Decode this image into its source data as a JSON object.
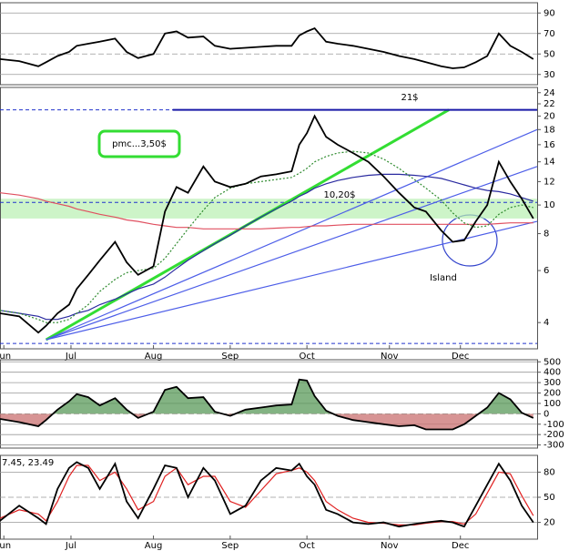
{
  "chart_data": [
    {
      "type": "line",
      "ylim": [
        20,
        100
      ],
      "yticks": [
        30,
        50,
        70,
        90
      ],
      "grid": true,
      "x": [
        0,
        5,
        10,
        12,
        15,
        18,
        20,
        23,
        26,
        30,
        33,
        36,
        40,
        43,
        46,
        49,
        53,
        56,
        60,
        64,
        68,
        72,
        76,
        78,
        80,
        82,
        85,
        88,
        92,
        96,
        100,
        104,
        108,
        111,
        115,
        118,
        121,
        124,
        127,
        130,
        133,
        136,
        139
      ],
      "xlim": [
        0,
        140
      ],
      "series": [
        {
          "color": "#000000",
          "values": [
            45,
            43,
            38,
            42,
            48,
            52,
            58,
            60,
            62,
            65,
            52,
            46,
            50,
            70,
            72,
            66,
            67,
            58,
            55,
            56,
            57,
            58,
            58,
            68,
            72,
            75,
            62,
            60,
            58,
            55,
            52,
            48,
            45,
            42,
            38,
            36,
            37,
            42,
            48,
            70,
            58,
            52,
            45
          ]
        }
      ]
    },
    {
      "type": "line",
      "log_scale": true,
      "ylim": [
        3.26,
        25
      ],
      "yticks": [
        4,
        6,
        8,
        10,
        12,
        14,
        16,
        18,
        20,
        22,
        24
      ],
      "grid": false,
      "x": [
        0,
        5,
        10,
        12,
        15,
        18,
        20,
        23,
        26,
        30,
        33,
        36,
        40,
        43,
        46,
        49,
        53,
        56,
        60,
        64,
        68,
        72,
        76,
        78,
        80,
        82,
        85,
        88,
        92,
        96,
        100,
        104,
        108,
        111,
        115,
        118,
        121,
        124,
        127,
        130,
        133,
        136,
        139
      ],
      "xlim": [
        0,
        140
      ],
      "xticks": [
        {
          "value": 1,
          "label": "Jun"
        },
        {
          "value": 18.5,
          "label": "Jul"
        },
        {
          "value": 40,
          "label": "Aug"
        },
        {
          "value": 60,
          "label": "Sep"
        },
        {
          "value": 80,
          "label": "Oct"
        },
        {
          "value": 101.5,
          "label": "Nov"
        },
        {
          "value": 120,
          "label": "Dec"
        }
      ],
      "band": [
        9,
        10.5
      ],
      "reference_lines": [
        21,
        10.2,
        3.4
      ],
      "trendlines": [
        {
          "color": "#33dd33",
          "x": [
            12,
            117
          ],
          "values": [
            3.5,
            21
          ]
        },
        {
          "color": "#4d5ee8",
          "x": [
            12,
            140
          ],
          "values": [
            3.5,
            18
          ]
        },
        {
          "color": "#4d5ee8",
          "x": [
            12,
            140
          ],
          "values": [
            3.5,
            13.5
          ]
        },
        {
          "color": "#4d5ee8",
          "x": [
            12,
            140
          ],
          "values": [
            3.5,
            8.8
          ]
        },
        {
          "color": "#1a1aa8",
          "x": [
            45,
            140
          ],
          "values": [
            21,
            21
          ]
        }
      ],
      "annotations": [
        "21$",
        "10,20$",
        "pmc...3,50$",
        "Island"
      ],
      "series": [
        {
          "color": "#e05060",
          "values": [
            11,
            10.8,
            10.5,
            10.3,
            10.1,
            9.9,
            9.7,
            9.5,
            9.3,
            9.1,
            8.9,
            8.8,
            8.6,
            8.5,
            8.4,
            8.4,
            8.3,
            8.3,
            8.3,
            8.3,
            8.3,
            8.35,
            8.4,
            8.4,
            8.45,
            8.5,
            8.5,
            8.55,
            8.6,
            8.6,
            8.6,
            8.6,
            8.6,
            8.6,
            8.6,
            8.6,
            8.6,
            8.6,
            8.6,
            8.65,
            8.7,
            8.7,
            8.7
          ]
        },
        {
          "color": "#2a2aa0",
          "values": [
            4.4,
            4.3,
            4.2,
            4.1,
            4.1,
            4.2,
            4.3,
            4.4,
            4.6,
            4.8,
            5,
            5.2,
            5.4,
            5.7,
            6.1,
            6.5,
            7,
            7.4,
            7.9,
            8.5,
            9.1,
            9.7,
            10.3,
            10.7,
            11,
            11.4,
            11.8,
            12.1,
            12.4,
            12.6,
            12.7,
            12.7,
            12.6,
            12.5,
            12.3,
            12,
            11.7,
            11.4,
            11.2,
            11.1,
            10.9,
            10.6,
            10.3
          ]
        },
        {
          "color": "#2e8b2e",
          "values": [
            4.4,
            4.3,
            4.1,
            4.0,
            4.0,
            4.1,
            4.3,
            4.6,
            5.1,
            5.6,
            5.9,
            6.0,
            6.1,
            6.6,
            7.4,
            8.3,
            9.6,
            10.6,
            11.4,
            11.8,
            12.0,
            12.2,
            12.4,
            12.8,
            13.3,
            14,
            14.6,
            15,
            15.2,
            15.0,
            14.3,
            13.3,
            12.2,
            11.4,
            10.4,
            9.4,
            8.7,
            8.4,
            8.5,
            9.3,
            9.8,
            10,
            9.8
          ]
        },
        {
          "color": "#000000",
          "values": [
            4.3,
            4.2,
            3.7,
            3.9,
            4.3,
            4.6,
            5.2,
            5.8,
            6.5,
            7.5,
            6.4,
            5.8,
            6.2,
            9.5,
            11.5,
            11,
            13.5,
            12,
            11.5,
            11.8,
            12.5,
            12.7,
            13,
            16,
            17.5,
            20,
            17,
            16,
            15,
            14,
            12.5,
            11,
            9.8,
            9.5,
            8.2,
            7.5,
            7.6,
            8.8,
            10,
            14,
            12,
            10.5,
            9
          ]
        }
      ]
    },
    {
      "type": "area",
      "ylim": [
        -330,
        520
      ],
      "yticks": [
        -300,
        -200,
        -100,
        0,
        100,
        200,
        300,
        400,
        500
      ],
      "grid": true,
      "x": [
        0,
        5,
        10,
        12,
        15,
        18,
        20,
        23,
        26,
        30,
        33,
        36,
        40,
        43,
        46,
        49,
        53,
        56,
        60,
        64,
        68,
        72,
        76,
        78,
        80,
        82,
        85,
        88,
        92,
        96,
        100,
        104,
        108,
        111,
        115,
        118,
        121,
        124,
        127,
        130,
        133,
        136,
        139
      ],
      "xlim": [
        0,
        140
      ],
      "series": [
        {
          "color": "#000000",
          "values": [
            -50,
            -80,
            -120,
            -60,
            40,
            120,
            190,
            160,
            80,
            150,
            40,
            -40,
            20,
            230,
            260,
            150,
            160,
            20,
            -20,
            40,
            60,
            80,
            90,
            330,
            320,
            170,
            30,
            -20,
            -60,
            -80,
            -100,
            -120,
            -110,
            -150,
            -150,
            -150,
            -100,
            -20,
            60,
            200,
            140,
            10,
            -40
          ]
        }
      ]
    },
    {
      "type": "line",
      "title": "7.45, 23.49",
      "ylim": [
        0,
        100
      ],
      "yticks": [
        20,
        50,
        80
      ],
      "grid": true,
      "x": [
        0,
        5,
        10,
        12,
        15,
        18,
        20,
        23,
        26,
        30,
        33,
        36,
        40,
        43,
        46,
        49,
        53,
        56,
        60,
        64,
        68,
        72,
        76,
        78,
        80,
        82,
        85,
        88,
        92,
        96,
        100,
        104,
        108,
        111,
        115,
        118,
        121,
        124,
        127,
        130,
        133,
        136,
        139
      ],
      "xlim": [
        0,
        140
      ],
      "xticks": [
        {
          "value": 1,
          "label": "Jun"
        },
        {
          "value": 18.5,
          "label": "Jul"
        },
        {
          "value": 40,
          "label": "Aug"
        },
        {
          "value": 60,
          "label": "Sep"
        },
        {
          "value": 80,
          "label": "Oct"
        },
        {
          "value": 101.5,
          "label": "Nov"
        },
        {
          "value": 120,
          "label": "Dec"
        }
      ],
      "series": [
        {
          "color": "#e02020",
          "values": [
            25,
            35,
            30,
            22,
            45,
            75,
            88,
            88,
            70,
            80,
            60,
            35,
            45,
            75,
            85,
            65,
            75,
            75,
            45,
            38,
            58,
            78,
            82,
            85,
            80,
            70,
            45,
            35,
            25,
            20,
            19,
            17,
            17,
            19,
            21,
            21,
            18,
            30,
            55,
            80,
            78,
            52,
            28
          ]
        },
        {
          "color": "#000000",
          "values": [
            22,
            40,
            25,
            18,
            60,
            85,
            92,
            85,
            60,
            90,
            45,
            25,
            60,
            88,
            85,
            50,
            85,
            70,
            30,
            40,
            70,
            85,
            82,
            90,
            75,
            65,
            35,
            30,
            20,
            18,
            20,
            15,
            18,
            20,
            22,
            20,
            15,
            40,
            65,
            90,
            70,
            40,
            20
          ]
        }
      ]
    }
  ]
}
